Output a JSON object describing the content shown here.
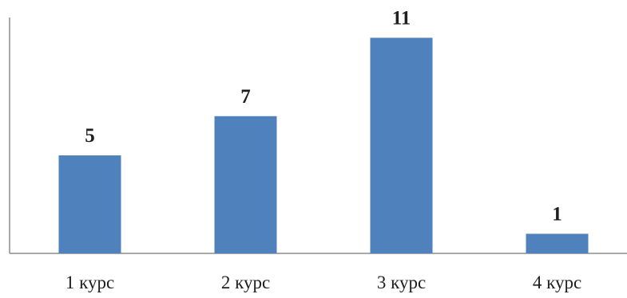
{
  "chart_data": {
    "type": "bar",
    "categories": [
      "1 курс",
      "2 курс",
      "3 курс",
      "4 курс"
    ],
    "values": [
      5,
      7,
      11,
      1
    ],
    "data_labels": [
      "5",
      "7",
      "11",
      "1"
    ],
    "title": "",
    "xlabel": "",
    "ylabel": "",
    "ylim": [
      0,
      12.5
    ],
    "grid": false,
    "legend": "none",
    "colors": {
      "bar": "#4f81bd",
      "axis": "#8c8c8c",
      "text": "#1f1f1f"
    }
  }
}
